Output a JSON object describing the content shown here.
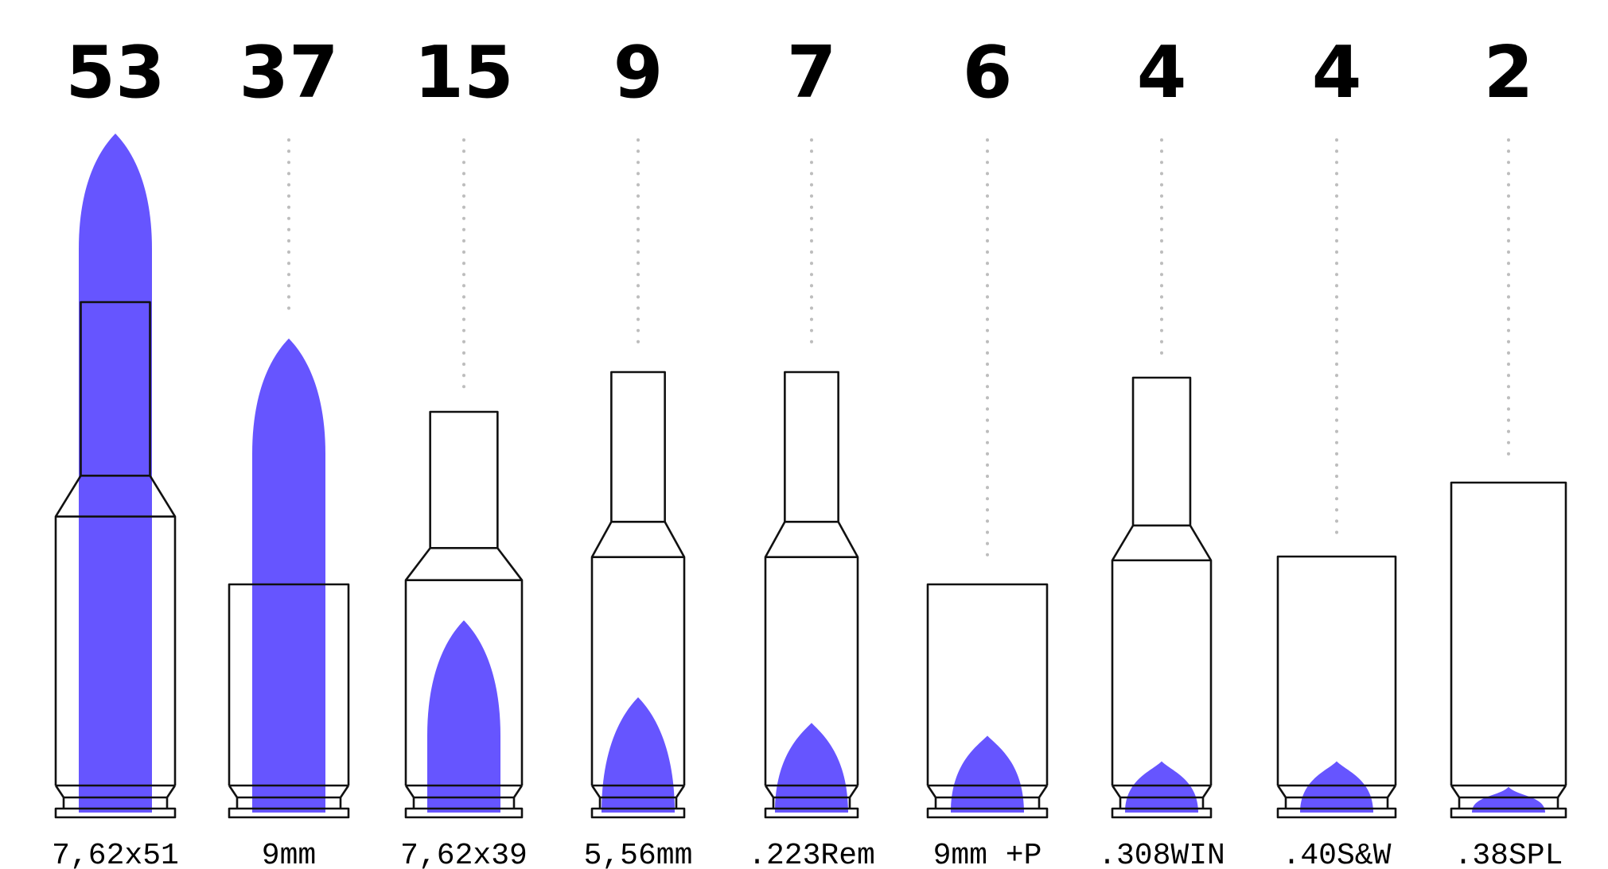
{
  "chart_data": {
    "type": "bar",
    "title": "",
    "xlabel": "",
    "ylabel": "",
    "categories": [
      "7,62x51",
      "9mm",
      "7,62x39",
      "5,56mm",
      ".223Rem",
      "9mm +P",
      ".308WIN",
      ".40S&W",
      ".38SPL"
    ],
    "values": [
      53,
      37,
      15,
      9,
      7,
      6,
      4,
      4,
      2
    ],
    "ylim": [
      0,
      53
    ],
    "value_labels": [
      "53",
      "37",
      "15",
      "9",
      "7",
      "6",
      "4",
      "4",
      "2"
    ],
    "cartridge_shapes": [
      "bottleneck-rifle",
      "straight-pistol",
      "bottleneck-rifle",
      "bottleneck-rifle",
      "bottleneck-rifle",
      "straight-pistol",
      "bottleneck-rifle",
      "straight-pistol",
      "straight-pistol"
    ],
    "grid": false,
    "legend": "none"
  },
  "colors": {
    "bar": "#6655ff",
    "outline": "#111111",
    "guide": "#bdbdbd"
  }
}
